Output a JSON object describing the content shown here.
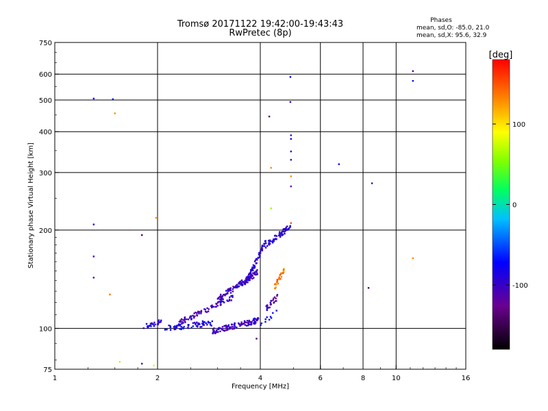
{
  "chart_data": {
    "type": "scatter",
    "title": "Tromsø 20171122 19:42:00-19:43:43",
    "subtitle": "RwPretec (8p)",
    "stats": {
      "heading": "Phases",
      "line1": "mean, sd,O: -85.0, 21.0",
      "line2": "mean, sd,X:  95.6, 32.9"
    },
    "xlabel": "Frequency [MHz]",
    "ylabel": "Stationary phase Virtual Height [km]",
    "x_scale": "log2",
    "y_scale": "log",
    "xlim": [
      1,
      16
    ],
    "ylim": [
      75,
      750
    ],
    "x_ticks": [
      1,
      2,
      4,
      6,
      8,
      10,
      16
    ],
    "x_tick_labels": [
      "1",
      "2",
      "4",
      "6",
      "8",
      "10",
      "16"
    ],
    "y_ticks": [
      75,
      100,
      200,
      300,
      400,
      500,
      600,
      750
    ],
    "y_tick_labels": [
      "75",
      "100",
      "200",
      "300",
      "400",
      "500",
      "600",
      "750"
    ],
    "grid": true,
    "colorbar": {
      "label": "[deg]",
      "range": [
        -180,
        180
      ],
      "ticks": [
        -100,
        0,
        100
      ],
      "tick_labels": [
        "-100",
        "0",
        "100"
      ]
    },
    "points": [
      [
        1.3,
        505,
        -90
      ],
      [
        1.3,
        208,
        -95
      ],
      [
        1.3,
        166,
        -100
      ],
      [
        1.3,
        143,
        -110
      ],
      [
        1.48,
        503,
        -70
      ],
      [
        1.5,
        455,
        130
      ],
      [
        1.45,
        127,
        140
      ],
      [
        1.55,
        79,
        70
      ],
      [
        1.8,
        193,
        -145
      ],
      [
        1.8,
        78,
        -105
      ],
      [
        1.95,
        77,
        80
      ],
      [
        1.98,
        218,
        125
      ],
      [
        4.25,
        445,
        -145
      ],
      [
        4.3,
        310,
        130
      ],
      [
        4.3,
        233,
        60
      ],
      [
        4.35,
        183,
        -80
      ],
      [
        4.9,
        588,
        -75
      ],
      [
        4.9,
        493,
        -100
      ],
      [
        4.92,
        390,
        -110
      ],
      [
        4.92,
        380,
        -80
      ],
      [
        4.92,
        348,
        -85
      ],
      [
        4.92,
        328,
        -100
      ],
      [
        4.92,
        292,
        130
      ],
      [
        4.92,
        272,
        -115
      ],
      [
        4.92,
        210,
        150
      ],
      [
        6.8,
        318,
        -80
      ],
      [
        8.5,
        278,
        -100
      ],
      [
        8.3,
        133,
        -145
      ],
      [
        11.2,
        613,
        -115
      ],
      [
        11.2,
        572,
        -70
      ],
      [
        11.2,
        164,
        130
      ],
      [
        3.9,
        93,
        -140
      ]
    ],
    "clusters": [
      {
        "x": [
          1.82,
          2.05
        ],
        "y": [
          101,
          105
        ],
        "n": 26,
        "phase": [
          -110,
          -70
        ]
      },
      {
        "x": [
          2.1,
          2.9
        ],
        "y": [
          100,
          104
        ],
        "n": 70,
        "phase": [
          -110,
          -60
        ]
      },
      {
        "x": [
          2.9,
          3.95
        ],
        "y": [
          98,
          106
        ],
        "n": 120,
        "phase": [
          -125,
          -80
        ]
      },
      {
        "x": [
          2.3,
          3.4
        ],
        "y": [
          104,
          126
        ],
        "n": 80,
        "phase": [
          -125,
          -85
        ]
      },
      {
        "x": [
          3.0,
          3.95
        ],
        "y": [
          123,
          149
        ],
        "n": 110,
        "phase": [
          -125,
          -85
        ]
      },
      {
        "x": [
          3.6,
          4.15
        ],
        "y": [
          135,
          185
        ],
        "n": 75,
        "phase": [
          -115,
          -70
        ]
      },
      {
        "x": [
          4.15,
          4.9
        ],
        "y": [
          180,
          205
        ],
        "n": 55,
        "phase": [
          -110,
          -70
        ]
      },
      {
        "x": [
          4.15,
          4.5
        ],
        "y": [
          115,
          125
        ],
        "n": 25,
        "phase": [
          -130,
          -90
        ]
      },
      {
        "x": [
          4.4,
          4.7
        ],
        "y": [
          133,
          152
        ],
        "n": 30,
        "phase": [
          110,
          160
        ]
      },
      {
        "x": [
          4.0,
          4.5
        ],
        "y": [
          103,
          112
        ],
        "n": 10,
        "phase": [
          -95,
          -60
        ]
      }
    ]
  }
}
